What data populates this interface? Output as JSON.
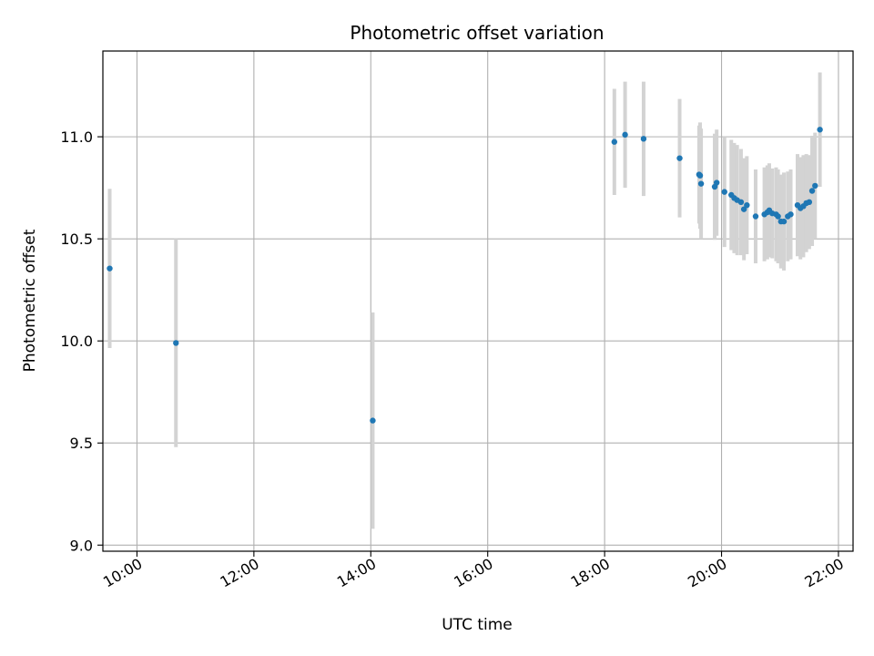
{
  "chart_data": {
    "type": "scatter",
    "title": "Photometric offset variation",
    "xlabel": "UTC time",
    "ylabel": "Photometric offset",
    "xlim": [
      "09:25",
      "22:15"
    ],
    "ylim": [
      8.97,
      11.42
    ],
    "x_ticks": [
      "10:00",
      "12:00",
      "14:00",
      "16:00",
      "18:00",
      "20:00",
      "22:00"
    ],
    "y_ticks": [
      "9.0",
      "9.5",
      "10.0",
      "10.5",
      "11.0"
    ],
    "grid": true,
    "colors": {
      "point": "#1f77b4",
      "errorbar": "#d3d3d3",
      "grid": "#b0b0b0"
    },
    "points": [
      {
        "x": "09:32",
        "y": 10.355,
        "err": 0.39
      },
      {
        "x": "10:40",
        "y": 9.99,
        "err": 0.51
      },
      {
        "x": "14:02",
        "y": 9.61,
        "err": 0.53
      },
      {
        "x": "18:10",
        "y": 10.975,
        "err": 0.26
      },
      {
        "x": "18:21",
        "y": 11.01,
        "err": 0.26
      },
      {
        "x": "18:40",
        "y": 10.99,
        "err": 0.28
      },
      {
        "x": "19:17",
        "y": 10.895,
        "err": 0.29
      },
      {
        "x": "19:37",
        "y": 10.815,
        "err": 0.24
      },
      {
        "x": "19:38",
        "y": 10.81,
        "err": 0.26
      },
      {
        "x": "19:39",
        "y": 10.77,
        "err": 0.27
      },
      {
        "x": "19:53",
        "y": 10.755,
        "err": 0.26
      },
      {
        "x": "19:55",
        "y": 10.775,
        "err": 0.26
      },
      {
        "x": "20:03",
        "y": 10.73,
        "err": 0.27
      },
      {
        "x": "20:10",
        "y": 10.715,
        "err": 0.27
      },
      {
        "x": "20:13",
        "y": 10.7,
        "err": 0.27
      },
      {
        "x": "20:16",
        "y": 10.69,
        "err": 0.27
      },
      {
        "x": "20:20",
        "y": 10.68,
        "err": 0.26
      },
      {
        "x": "20:23",
        "y": 10.645,
        "err": 0.25
      },
      {
        "x": "20:26",
        "y": 10.665,
        "err": 0.24
      },
      {
        "x": "20:35",
        "y": 10.61,
        "err": 0.23
      },
      {
        "x": "20:44",
        "y": 10.62,
        "err": 0.23
      },
      {
        "x": "20:47",
        "y": 10.63,
        "err": 0.23
      },
      {
        "x": "20:49",
        "y": 10.64,
        "err": 0.23
      },
      {
        "x": "20:52",
        "y": 10.625,
        "err": 0.22
      },
      {
        "x": "20:56",
        "y": 10.62,
        "err": 0.23
      },
      {
        "x": "20:58",
        "y": 10.61,
        "err": 0.23
      },
      {
        "x": "21:01",
        "y": 10.585,
        "err": 0.23
      },
      {
        "x": "21:04",
        "y": 10.585,
        "err": 0.24
      },
      {
        "x": "21:08",
        "y": 10.61,
        "err": 0.22
      },
      {
        "x": "21:11",
        "y": 10.62,
        "err": 0.22
      },
      {
        "x": "21:18",
        "y": 10.665,
        "err": 0.25
      },
      {
        "x": "21:21",
        "y": 10.65,
        "err": 0.25
      },
      {
        "x": "21:24",
        "y": 10.66,
        "err": 0.25
      },
      {
        "x": "21:27",
        "y": 10.675,
        "err": 0.24
      },
      {
        "x": "21:30",
        "y": 10.68,
        "err": 0.23
      },
      {
        "x": "21:33",
        "y": 10.735,
        "err": 0.27
      },
      {
        "x": "21:36",
        "y": 10.76,
        "err": 0.26
      },
      {
        "x": "21:41",
        "y": 11.035,
        "err": 0.28
      }
    ]
  }
}
